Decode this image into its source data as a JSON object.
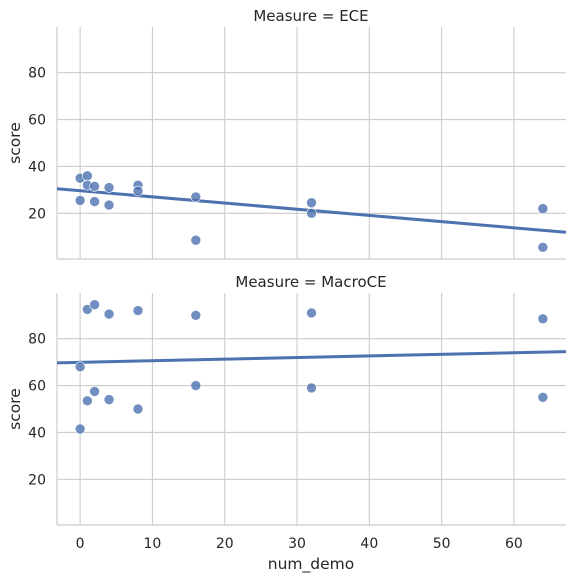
{
  "chart_data": {
    "type": "scatter",
    "xlabel": "num_demo",
    "ylabel": "score",
    "xlim": [
      -3.2,
      67.2
    ],
    "ylim": [
      0.5,
      99.5
    ],
    "xticks": [
      0,
      10,
      20,
      30,
      40,
      50,
      60
    ],
    "yticks": [
      20,
      40,
      60,
      80
    ],
    "grid": true,
    "facets": [
      {
        "title": "Measure = ECE",
        "points": [
          {
            "x": 0,
            "y": 35
          },
          {
            "x": 0,
            "y": 25.5
          },
          {
            "x": 1,
            "y": 36
          },
          {
            "x": 1,
            "y": 32
          },
          {
            "x": 2,
            "y": 31.5
          },
          {
            "x": 2,
            "y": 25
          },
          {
            "x": 4,
            "y": 31
          },
          {
            "x": 4,
            "y": 23.5
          },
          {
            "x": 8,
            "y": 32
          },
          {
            "x": 8,
            "y": 29.5
          },
          {
            "x": 16,
            "y": 27
          },
          {
            "x": 16,
            "y": 8.5
          },
          {
            "x": 32,
            "y": 24.5
          },
          {
            "x": 32,
            "y": 20
          },
          {
            "x": 64,
            "y": 22
          },
          {
            "x": 64,
            "y": 5.5
          }
        ],
        "regression": {
          "x": [
            -3.2,
            67.2
          ],
          "y": [
            30.5,
            11.9
          ]
        }
      },
      {
        "title": "Measure = MacroCE",
        "points": [
          {
            "x": 0,
            "y": 68
          },
          {
            "x": 0,
            "y": 41.5
          },
          {
            "x": 1,
            "y": 92.5
          },
          {
            "x": 1,
            "y": 53.5
          },
          {
            "x": 2,
            "y": 94.5
          },
          {
            "x": 2,
            "y": 57.5
          },
          {
            "x": 4,
            "y": 90.5
          },
          {
            "x": 4,
            "y": 54
          },
          {
            "x": 8,
            "y": 92
          },
          {
            "x": 8,
            "y": 50
          },
          {
            "x": 16,
            "y": 90
          },
          {
            "x": 16,
            "y": 60
          },
          {
            "x": 32,
            "y": 91
          },
          {
            "x": 32,
            "y": 59
          },
          {
            "x": 64,
            "y": 88.5
          },
          {
            "x": 64,
            "y": 55
          }
        ],
        "regression": {
          "x": [
            -3.2,
            67.2
          ],
          "y": [
            69.7,
            74.5
          ]
        }
      }
    ]
  }
}
